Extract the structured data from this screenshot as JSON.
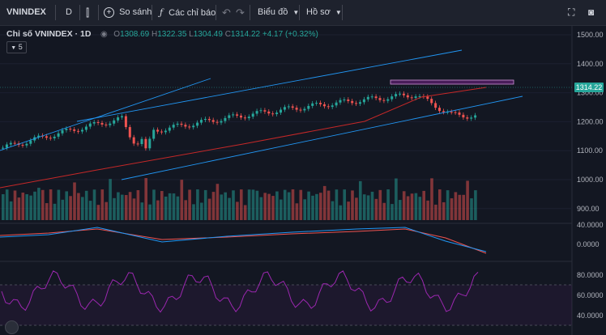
{
  "toolbar": {
    "symbol": "VNINDEX",
    "interval": "D",
    "compare_label": "So sánh",
    "indicators_label": "Các chỉ báo",
    "chart_layout_label": "Biểu đồ",
    "profile_label": "Hồ sơ"
  },
  "legend": {
    "title": "Chỉ số VNINDEX · 1D",
    "open_label": "O",
    "open": "1308.69",
    "high_label": "H",
    "high": "1322.35",
    "low_label": "L",
    "low": "1304.49",
    "close_label": "C",
    "close": "1314.22",
    "change": "+4.17 (+0.32%)",
    "collapsed_count": "5"
  },
  "price_axis": {
    "current_price": "1314.22",
    "labels": [
      "1500.00",
      "1400.00",
      "1300.00",
      "1200.00",
      "1100.00",
      "1000.00",
      "900.00"
    ]
  },
  "macd_axis": {
    "labels": [
      "40.0000",
      "0.0000"
    ]
  },
  "rsi_axis": {
    "labels": [
      "80.0000",
      "60.0000",
      "40.0000"
    ]
  },
  "colors": {
    "background": "#131722",
    "toolbar": "#1e222d",
    "up": "#26a69a",
    "down": "#ef5350",
    "trendline": "#2196f3",
    "ma_slow": "#c62828",
    "rsi": "#9c27b0"
  }
}
